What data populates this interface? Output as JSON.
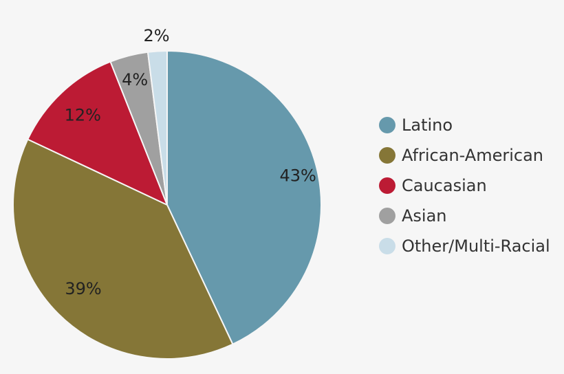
{
  "chart_data": {
    "type": "pie",
    "categories": [
      "Latino",
      "African-American",
      "Caucasian",
      "Asian",
      "Other/Multi-Racial"
    ],
    "values": [
      43,
      39,
      12,
      4,
      2
    ],
    "labels": [
      "43%",
      "39%",
      "12%",
      "4%",
      "2%"
    ],
    "colors": [
      "#6699ac",
      "#857637",
      "#bc1b34",
      "#a0a0a0",
      "#c9dde8"
    ],
    "legend_position": "right"
  }
}
